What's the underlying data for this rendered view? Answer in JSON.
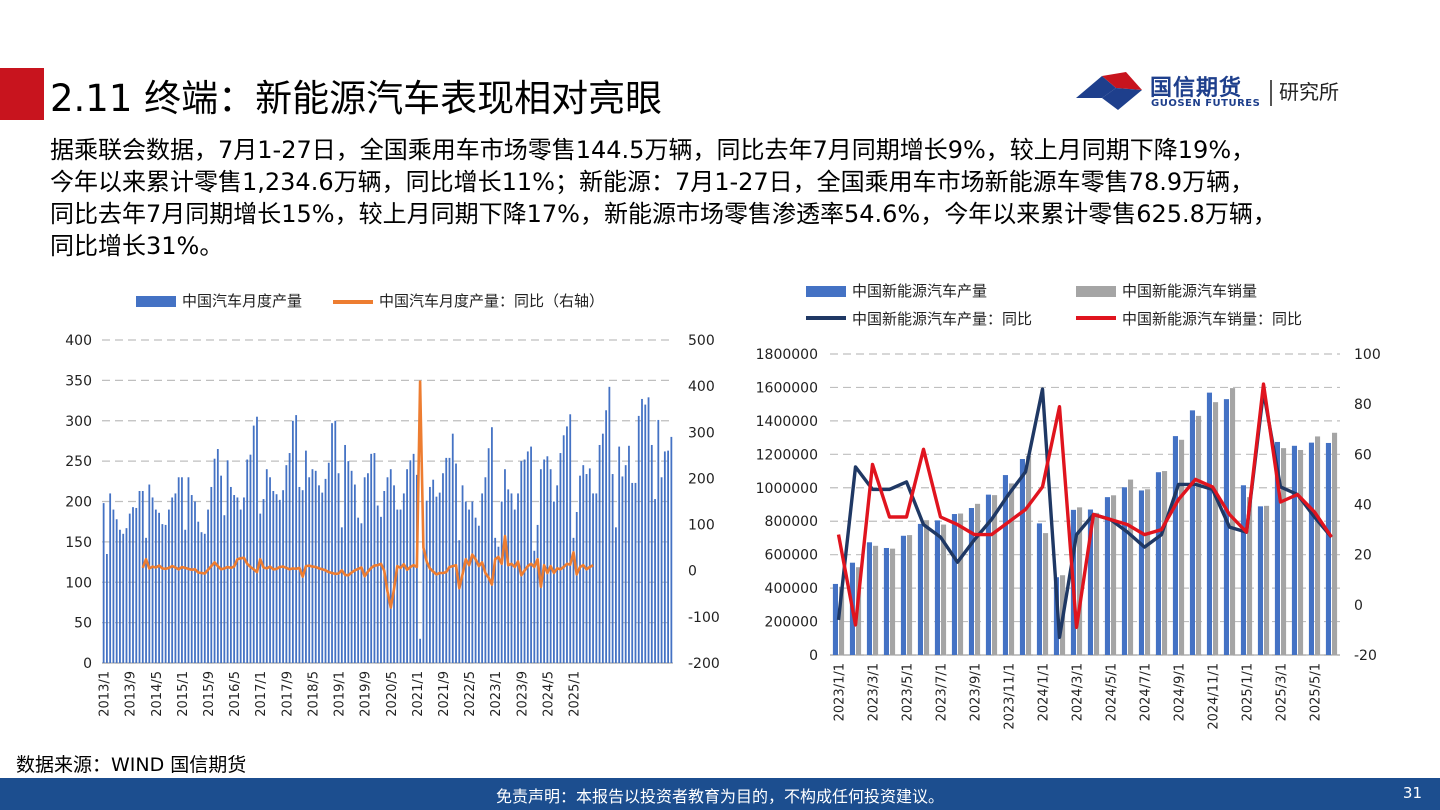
{
  "header": {
    "title": "2.11 终端：新能源汽车表现相对亮眼",
    "logo_cn": "国信期货",
    "logo_dept": "研究所",
    "logo_en": "GUOSEN FUTURES"
  },
  "summary": [
    "据乘联会数据，7月1-27日，全国乘用车市场零售144.5万辆，同比去年7月同期增长9%，较上月同期下降19%，",
    "今年以来累计零售1,234.6万辆，同比增长11%；新能源：7月1-27日，全国乘用车市场新能源车零售78.9万辆，",
    "同比去年7月同期增长15%，较上月同期下降17%，新能源市场零售渗透率54.6%，今年以来累计零售625.8万辆，",
    "同比增长31%。"
  ],
  "source": "数据来源：WIND 国信期货",
  "footer": {
    "disclaimer": "免责声明：本报告以投资者教育为目的，不构成任何投资建议。",
    "page": "31"
  },
  "colors": {
    "accent_red": "#c8141e",
    "footer_blue": "#1c4e8f",
    "bar_blue": "#4472c4",
    "line_orange": "#ed7d31",
    "bar_gray": "#a5a5a5",
    "line_navy": "#1f3864",
    "line_red": "#e0141e"
  },
  "chart_data": [
    {
      "type": "bar",
      "legend": [
        "中国汽车月度产量",
        "中国汽车月度产量：同比（右轴）"
      ],
      "legend_position": "top",
      "x_tick_labels": [
        "2013/1",
        "2013/9",
        "2014/5",
        "2015/1",
        "2015/9",
        "2016/5",
        "2017/1",
        "2017/9",
        "2018/5",
        "2019/1",
        "2019/9",
        "2020/5",
        "2021/1",
        "2021/9",
        "2022/5",
        "2023/1",
        "2023/9",
        "2024/5",
        "2025/1"
      ],
      "y_left": {
        "min": 0,
        "max": 400,
        "ticks": [
          0,
          50,
          100,
          150,
          200,
          250,
          300,
          350,
          400
        ]
      },
      "y_right": {
        "min": -200,
        "max": 500,
        "ticks": [
          -200,
          -100,
          0,
          100,
          200,
          300,
          400,
          500
        ]
      },
      "grid": true,
      "series": [
        {
          "name": "中国汽车月度产量",
          "type": "bar",
          "axis": "left",
          "start": "2013/1",
          "values": [
            198,
            135,
            210,
            190,
            178,
            165,
            160,
            167,
            185,
            193,
            192,
            213,
            213,
            155,
            221,
            205,
            190,
            186,
            172,
            171,
            190,
            205,
            210,
            230,
            230,
            165,
            230,
            208,
            200,
            175,
            162,
            160,
            190,
            218,
            253,
            265,
            232,
            183,
            251,
            218,
            208,
            205,
            190,
            205,
            252,
            258,
            294,
            305,
            185,
            203,
            240,
            230,
            213,
            209,
            202,
            214,
            245,
            260,
            300,
            307,
            218,
            214,
            263,
            230,
            240,
            238,
            220,
            211,
            228,
            248,
            297,
            300,
            235,
            168,
            270,
            250,
            238,
            221,
            180,
            173,
            230,
            235,
            259,
            260,
            195,
            181,
            213,
            230,
            240,
            220,
            190,
            190,
            210,
            240,
            251,
            259,
            233,
            30,
            142,
            201,
            218,
            227,
            206,
            211,
            235,
            254,
            254,
            284,
            247,
            152,
            220,
            200,
            190,
            200,
            180,
            170,
            210,
            230,
            266,
            292,
            155,
            144,
            200,
            240,
            215,
            210,
            190,
            210,
            250,
            252,
            262,
            268,
            139,
            171,
            240,
            252,
            256,
            240,
            200,
            220,
            260,
            282,
            293,
            308,
            155,
            187,
            232,
            245,
            234,
            241,
            210,
            210,
            270,
            284,
            313,
            342,
            234,
            168,
            268,
            231,
            245,
            269,
            223,
            223,
            306,
            327,
            320,
            329,
            270,
            203,
            301,
            230,
            262,
            263,
            280
          ]
        },
        {
          "name": "中国汽车月度产量：同比（右轴）",
          "type": "line",
          "axis": "right",
          "start": "2014/1",
          "values": [
            6,
            25,
            5,
            9,
            7,
            11,
            5,
            4,
            6,
            10,
            7,
            3,
            8,
            6,
            4,
            2,
            3,
            -4,
            -5,
            -6,
            2,
            10,
            18,
            10,
            3,
            5,
            8,
            6,
            9,
            25,
            27,
            28,
            15,
            8,
            3,
            -3,
            25,
            7,
            5,
            9,
            3,
            4,
            8,
            9,
            6,
            3,
            5,
            4,
            6,
            -13,
            10,
            11,
            9,
            8,
            5,
            3,
            1,
            -3,
            -5,
            -7,
            -6,
            1,
            -9,
            -10,
            -4,
            1,
            4,
            7,
            -12,
            -2,
            6,
            11,
            12,
            15,
            0,
            -45,
            -80,
            -40,
            10,
            6,
            14,
            2,
            8,
            12,
            8,
            410,
            50,
            20,
            5,
            -2,
            -8,
            -5,
            -5,
            -3,
            8,
            10,
            12,
            -38,
            -8,
            25,
            12,
            35,
            25,
            10,
            18,
            -5,
            -15,
            -30,
            25,
            30,
            15,
            75,
            12,
            15,
            8,
            20,
            -10,
            0,
            10,
            15,
            8,
            25,
            -35,
            12,
            -5,
            10,
            -5,
            5,
            3,
            8,
            15,
            13,
            40,
            -8,
            8,
            12,
            3,
            8,
            12
          ]
        }
      ]
    },
    {
      "type": "bar",
      "legend": [
        "中国新能源汽车产量",
        "中国新能源汽车销量",
        "中国新能源汽车产量：同比",
        "中国新能源汽车销量：同比"
      ],
      "legend_position": "top",
      "x_tick_labels": [
        "2023/1/1",
        "2023/3/1",
        "2023/5/1",
        "2023/7/1",
        "2023/9/1",
        "2023/11/1",
        "2024/1/1",
        "2024/3/1",
        "2024/5/1",
        "2024/7/1",
        "2024/9/1",
        "2024/11/1",
        "2025/1/1",
        "2025/3/1",
        "2025/5/1"
      ],
      "y_left": {
        "min": 0,
        "max": 1800000,
        "ticks": [
          0,
          200000,
          400000,
          600000,
          800000,
          1000000,
          1200000,
          1400000,
          1600000,
          1800000
        ]
      },
      "y_right": {
        "min": -20,
        "max": 100,
        "ticks": [
          -20,
          0,
          20,
          40,
          60,
          80,
          100
        ]
      },
      "grid": true,
      "categories": [
        "2023/1",
        "2023/2",
        "2023/3",
        "2023/4",
        "2023/5",
        "2023/6",
        "2023/7",
        "2023/8",
        "2023/9",
        "2023/10",
        "2023/11",
        "2023/12",
        "2024/1",
        "2024/2",
        "2024/3",
        "2024/4",
        "2024/5",
        "2024/6",
        "2024/7",
        "2024/8",
        "2024/9",
        "2024/10",
        "2024/11",
        "2024/12",
        "2025/1",
        "2025/2",
        "2025/3",
        "2025/4",
        "2025/5",
        "2025/6"
      ],
      "series": [
        {
          "name": "中国新能源汽车产量",
          "type": "bar",
          "axis": "left",
          "values": [
            425000,
            552000,
            674000,
            640000,
            713000,
            784000,
            805000,
            843000,
            879000,
            959000,
            1076000,
            1172000,
            787000,
            465000,
            868000,
            870000,
            944000,
            1003000,
            984000,
            1093000,
            1309000,
            1463000,
            1569000,
            1530000,
            1015000,
            889000,
            1274000,
            1251000,
            1270000,
            1268000
          ]
        },
        {
          "name": "中国新能源汽车销量",
          "type": "bar",
          "axis": "left",
          "values": [
            408000,
            525000,
            653000,
            636000,
            717000,
            806000,
            780000,
            846000,
            904000,
            956000,
            1026000,
            1191000,
            729000,
            477000,
            883000,
            850000,
            955000,
            1049000,
            991000,
            1100000,
            1287000,
            1430000,
            1512000,
            1596000,
            944000,
            892000,
            1237000,
            1226000,
            1307000,
            1329000
          ]
        },
        {
          "name": "中国新能源汽车产量：同比",
          "type": "line",
          "axis": "right",
          "values": [
            -6,
            55,
            46,
            46,
            49,
            32,
            27,
            17,
            26,
            34,
            44,
            53,
            86,
            -13,
            28,
            36,
            34,
            29,
            23,
            28,
            48,
            48,
            46,
            31,
            29,
            85,
            47,
            44,
            35,
            27
          ]
        },
        {
          "name": "中国新能源汽车销量：同比",
          "type": "line",
          "axis": "right",
          "values": [
            28,
            -8,
            56,
            35,
            35,
            62,
            35,
            32,
            28,
            28,
            33,
            38,
            47,
            79,
            -9,
            36,
            34,
            32,
            28,
            30,
            42,
            50,
            47,
            36,
            29,
            88,
            41,
            44,
            37,
            27
          ]
        }
      ]
    }
  ]
}
